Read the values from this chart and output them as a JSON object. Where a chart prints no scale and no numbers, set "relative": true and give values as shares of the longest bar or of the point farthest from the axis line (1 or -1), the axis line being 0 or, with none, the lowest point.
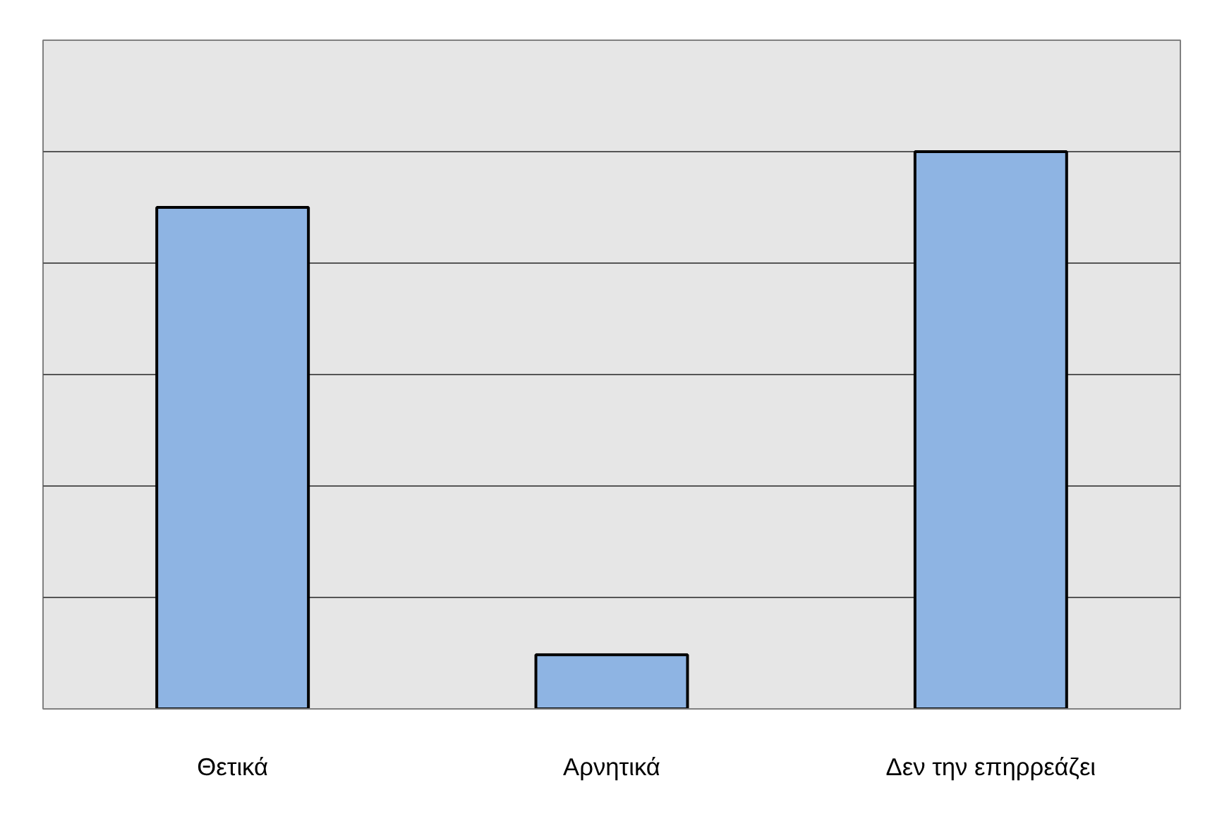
{
  "chart_data": {
    "type": "bar",
    "relative": true,
    "categories": [
      "Θετικά",
      "Αρνητικά",
      "Δεν την επηρρεάζει"
    ],
    "values": [
      0.9,
      0.097,
      1
    ],
    "color": "#8eb4e3",
    "grid": "y"
  }
}
